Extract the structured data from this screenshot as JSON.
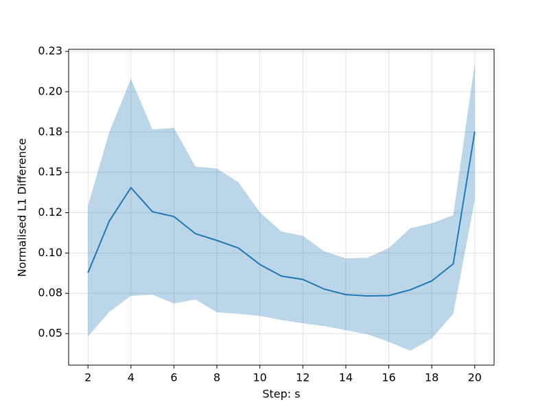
{
  "chart_data": {
    "type": "line_band",
    "xlabel": "Step: s",
    "ylabel": "Normalised L1 Difference",
    "x": [
      2,
      3,
      4,
      5,
      6,
      7,
      8,
      9,
      10,
      11,
      12,
      13,
      14,
      15,
      16,
      17,
      18,
      19,
      20
    ],
    "series": [
      {
        "color": "#1f77b4",
        "values": [
          0.0878,
          0.12,
          0.1405,
          0.1256,
          0.1226,
          0.112,
          0.1078,
          0.1031,
          0.0929,
          0.0857,
          0.0836,
          0.0776,
          0.0742,
          0.0734,
          0.0736,
          0.0772,
          0.0827,
          0.0933,
          0.1753
        ],
        "upper": [
          0.1294,
          0.1753,
          0.208,
          0.1766,
          0.1775,
          0.1536,
          0.1524,
          0.1439,
          0.1252,
          0.1133,
          0.1107,
          0.101,
          0.0967,
          0.0971,
          0.1031,
          0.1154,
          0.1184,
          0.1235,
          0.2178
        ],
        "lower": [
          0.0483,
          0.0636,
          0.0734,
          0.0742,
          0.0687,
          0.0712,
          0.0632,
          0.0623,
          0.061,
          0.0585,
          0.0564,
          0.0547,
          0.0521,
          0.0496,
          0.0449,
          0.0394,
          0.047,
          0.0623,
          0.1328
        ],
        "band_opacity": 0.3
      }
    ],
    "xlim": [
      1.1,
      20.9
    ],
    "xticks": [
      2,
      4,
      6,
      8,
      10,
      12,
      14,
      16,
      18,
      20
    ],
    "ylim": [
      0.0305,
      0.2263
    ],
    "yticks": [
      0.05,
      {
        "value": 0.075,
        "label": "0.08"
      },
      {
        "value": 0.1,
        "label": "0.10"
      },
      {
        "value": 0.125,
        "label": "0.12"
      },
      0.15,
      {
        "value": 0.175,
        "label": "0.18"
      },
      {
        "value": 0.2,
        "label": "0.20"
      },
      {
        "value": 0.225,
        "label": "0.23"
      }
    ],
    "grid": true
  }
}
